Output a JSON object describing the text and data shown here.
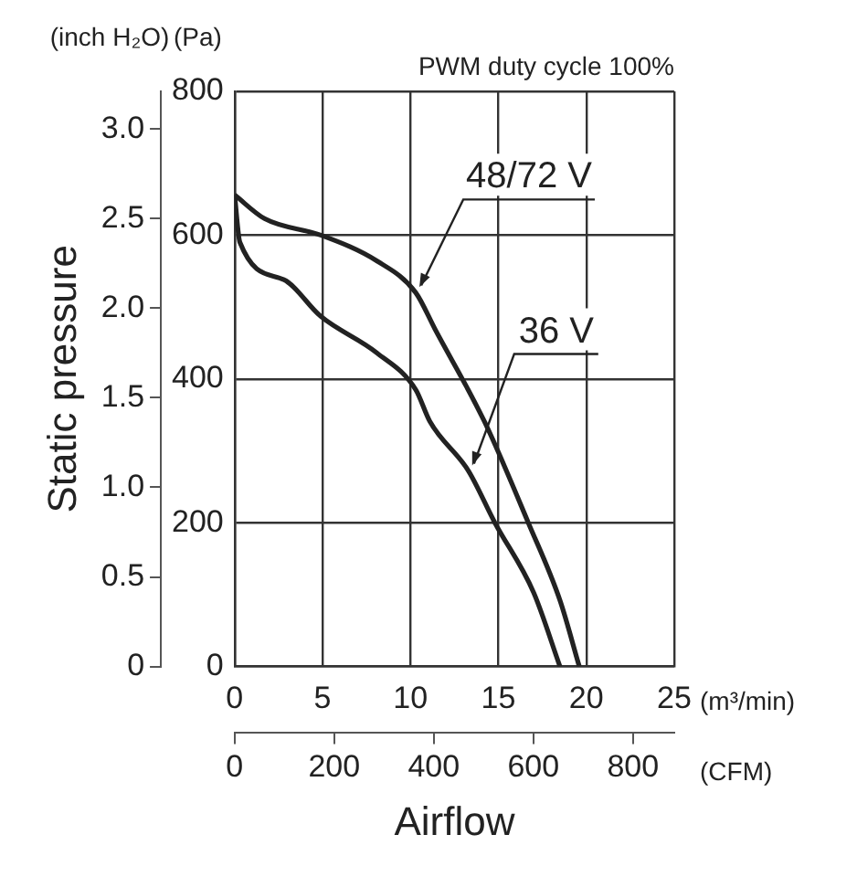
{
  "chart_data": {
    "type": "line",
    "title": "PWM duty cycle 100%",
    "xlabel": "Airflow",
    "y2label": "Static pressure",
    "x2label": "(CFM)",
    "annotations": [
      "(Pa)",
      "(m³/min)",
      "(inch H₂O)"
    ],
    "xlim": [
      0,
      25
    ],
    "xticks": [
      0,
      5,
      10,
      15,
      20,
      25
    ],
    "ylim": [
      0,
      800
    ],
    "yticks": [
      0,
      200,
      400,
      600,
      800
    ],
    "x2lim": [
      0,
      883
    ],
    "x2ticks": [
      0,
      200,
      400,
      600,
      800
    ],
    "y2lim": [
      0,
      3.21
    ],
    "y2ticks": [
      0,
      0.5,
      {
        "value": 1,
        "label": "1.0"
      },
      1.5,
      {
        "value": 2,
        "label": "2.0"
      },
      2.5,
      {
        "value": 3,
        "label": "3.0"
      }
    ],
    "grid": true,
    "legend": false,
    "marker": "none",
    "line_style": "solid",
    "series": [
      {
        "name": "48/72 V",
        "color": "#222222",
        "x": [
          0,
          1.7,
          4.9,
          8.1,
          10.3,
          11.4,
          14.2,
          16.7,
          18.5,
          19.6
        ],
        "values": [
          656,
          623,
          600,
          564,
          520,
          469,
          341,
          200,
          92,
          0
        ]
      },
      {
        "name": "36 V",
        "color": "#222222",
        "x": [
          0,
          0.3,
          2.8,
          4.9,
          8.1,
          10.3,
          11.1,
          13.3,
          14.8,
          17.0,
          18.5
        ],
        "values": [
          656,
          590,
          538,
          487,
          436,
          385,
          341,
          272,
          200,
          103,
          0
        ]
      }
    ]
  }
}
